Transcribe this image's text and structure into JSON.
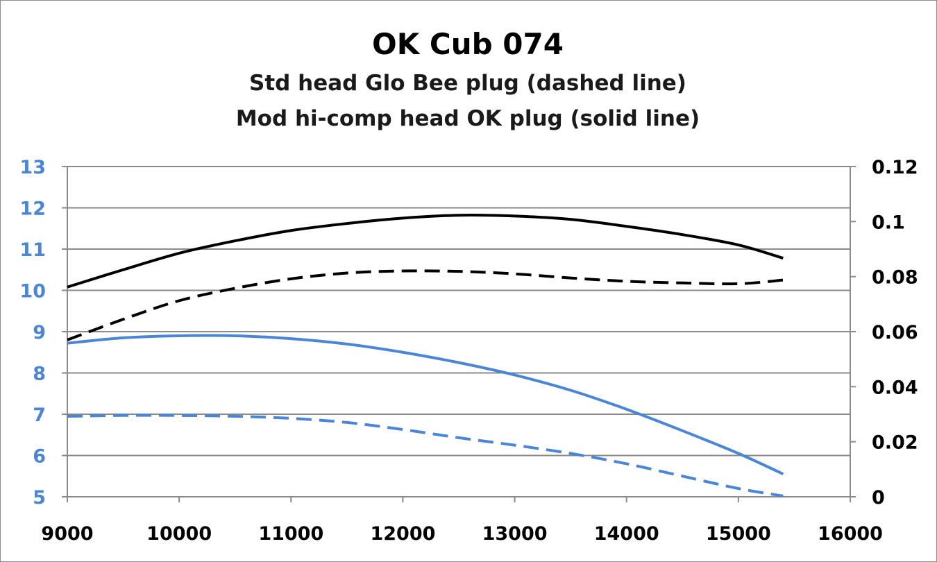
{
  "chart_data": {
    "type": "line",
    "title": "OK Cub 074",
    "subtitle_lines": [
      "Std head Glo Bee plug (dashed line)",
      "Mod hi-comp head OK plug (solid line)"
    ],
    "xlabel": "",
    "ylabel": "",
    "y2label": "",
    "xlim": [
      9000,
      16000
    ],
    "ylim": [
      5,
      13
    ],
    "y2lim": [
      0,
      0.12
    ],
    "x_ticks": [
      "9000",
      "10000",
      "11000",
      "12000",
      "13000",
      "14000",
      "15000",
      "16000"
    ],
    "y_ticks": [
      "5",
      "6",
      "7",
      "8",
      "9",
      "10",
      "11",
      "12",
      "13"
    ],
    "y2_ticks": [
      "0",
      "0.02",
      "0.04",
      "0.06",
      "0.08",
      "0.1",
      "0.12"
    ],
    "grid": true,
    "legend": "none",
    "colors": {
      "left_axis": "#4a86d8",
      "right_axis": "#000000",
      "gridline": "#8a8a8a"
    },
    "series": [
      {
        "axis": "left",
        "color": "#000000",
        "dash": false,
        "x": [
          9000,
          9500,
          10000,
          10500,
          11000,
          11500,
          12000,
          12500,
          13000,
          13500,
          14000,
          14500,
          15000,
          15400
        ],
        "values": [
          10.08,
          10.5,
          10.9,
          11.2,
          11.45,
          11.62,
          11.75,
          11.82,
          11.8,
          11.72,
          11.55,
          11.35,
          11.1,
          10.78
        ]
      },
      {
        "axis": "left",
        "color": "#000000",
        "dash": true,
        "x": [
          9000,
          9500,
          10000,
          10500,
          11000,
          11500,
          12000,
          12500,
          13000,
          13500,
          14000,
          14500,
          15000,
          15400
        ],
        "values": [
          8.8,
          9.3,
          9.75,
          10.05,
          10.28,
          10.42,
          10.47,
          10.46,
          10.4,
          10.3,
          10.22,
          10.18,
          10.16,
          10.25
        ]
      },
      {
        "axis": "left",
        "color": "#4a86d8",
        "dash": false,
        "x": [
          9000,
          9500,
          10000,
          10500,
          11000,
          11500,
          12000,
          12500,
          13000,
          13500,
          14000,
          14500,
          15000,
          15400
        ],
        "values": [
          8.72,
          8.85,
          8.9,
          8.9,
          8.83,
          8.7,
          8.5,
          8.25,
          7.95,
          7.58,
          7.12,
          6.6,
          6.05,
          5.55
        ]
      },
      {
        "axis": "left",
        "color": "#4a86d8",
        "dash": true,
        "x": [
          9000,
          9500,
          10000,
          10500,
          11000,
          11500,
          12000,
          12500,
          13000,
          13500,
          14000,
          14500,
          15000,
          15400
        ],
        "values": [
          6.95,
          6.97,
          6.97,
          6.95,
          6.9,
          6.8,
          6.63,
          6.43,
          6.25,
          6.05,
          5.8,
          5.5,
          5.2,
          5.02
        ]
      }
    ]
  }
}
